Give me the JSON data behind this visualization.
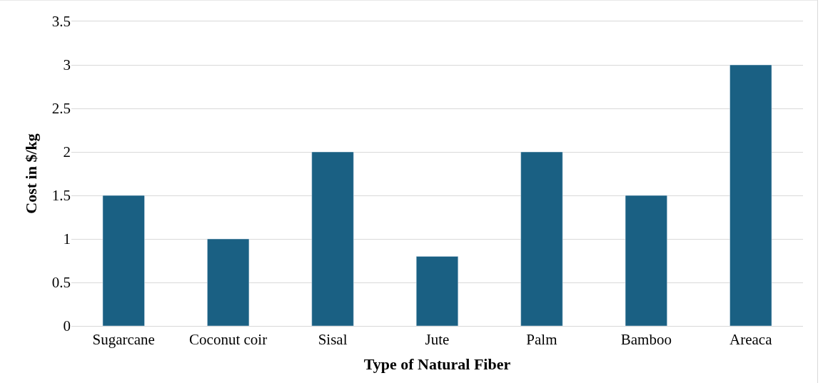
{
  "chart_data": {
    "type": "bar",
    "xlabel": "Type of Natural Fiber",
    "ylabel": "Cost in $/kg",
    "categories": [
      "Sugarcane",
      "Coconut coir",
      "Sisal",
      "Jute",
      "Palm",
      "Bamboo",
      "Areaca"
    ],
    "values": [
      1.5,
      1,
      2,
      0.8,
      2,
      1.5,
      3
    ],
    "color": "#1a6083",
    "ylim": [
      0,
      3.5
    ],
    "yticks": [
      0,
      0.5,
      1,
      1.5,
      2,
      2.5,
      3,
      3.5
    ],
    "grid": "y"
  }
}
